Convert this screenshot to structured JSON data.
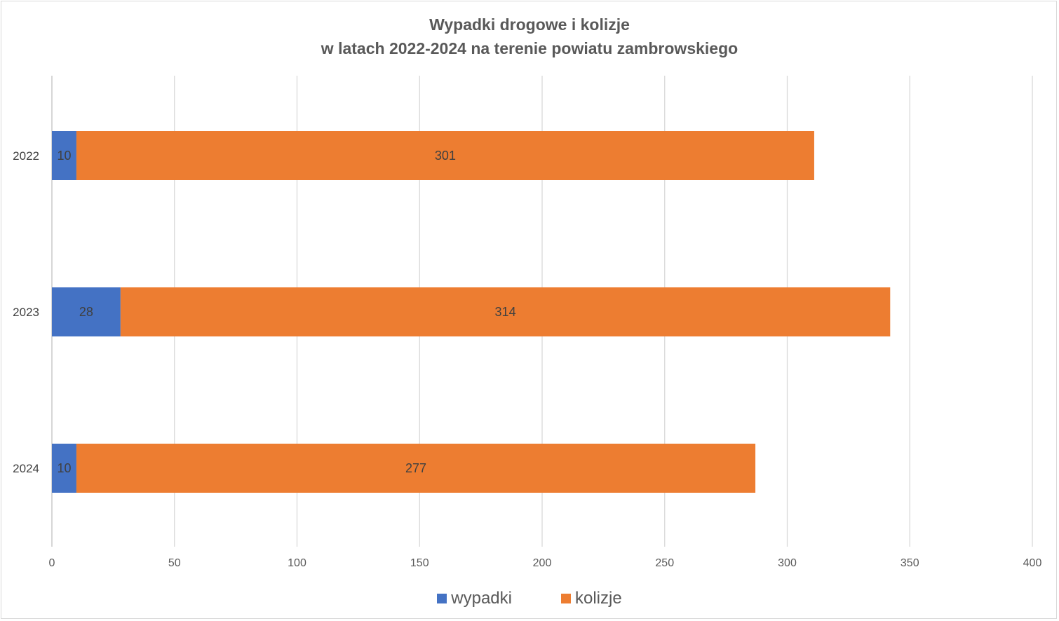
{
  "chart_data": {
    "type": "bar",
    "orientation": "horizontal",
    "stacked": true,
    "title_lines": [
      "Wypadki drogowe i kolizje",
      "w latach 2022-2024 na terenie powiatu zambrowskiego"
    ],
    "categories": [
      "2022",
      "2023",
      "2024"
    ],
    "series": [
      {
        "name": "wypadki",
        "color": "#4472c4",
        "values": [
          10,
          28,
          10
        ]
      },
      {
        "name": "kolizje",
        "color": "#ed7d31",
        "values": [
          301,
          314,
          277
        ]
      }
    ],
    "xlim": [
      0,
      400
    ],
    "x_ticks": [
      "0",
      "50",
      "100",
      "150",
      "200",
      "250",
      "300",
      "350",
      "400"
    ],
    "grid": true,
    "legend_position": "bottom"
  }
}
